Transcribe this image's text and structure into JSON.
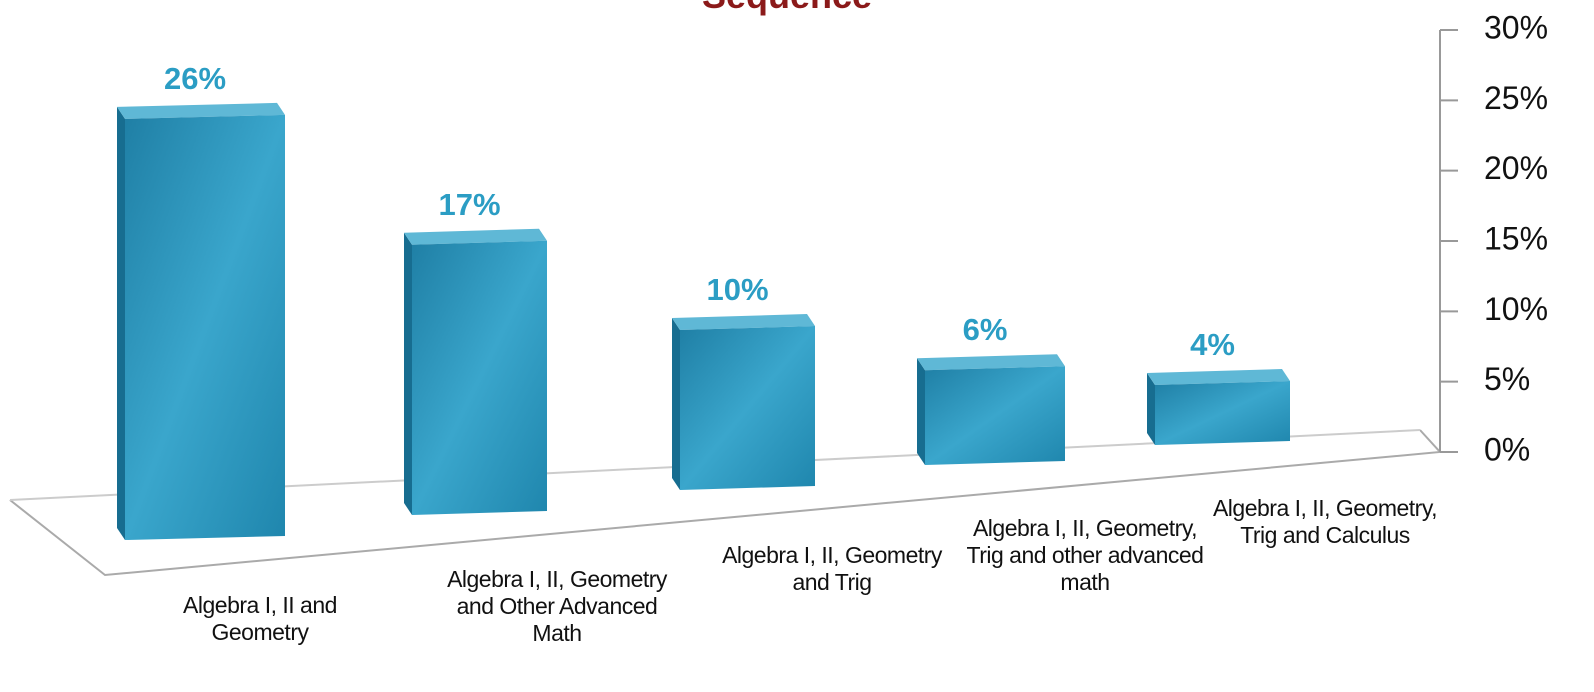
{
  "chart_data": {
    "type": "bar3d",
    "title": "Sequence",
    "categories": [
      "Algebra I, II and Geometry",
      "Algebra I, II, Geometry and Other Advanced Math",
      "Algebra I, II, Geometry and Trig",
      "Algebra I, II, Geometry, Trig and other advanced math",
      "Algebra I, II, Geometry, Trig and Calculus"
    ],
    "values": [
      26,
      17,
      10,
      6,
      4
    ],
    "value_labels": [
      "26%",
      "17%",
      "10%",
      "6%",
      "4%"
    ],
    "color": "#2a8fb5",
    "ylim": [
      0,
      30
    ],
    "yticks": [
      {
        "value": 0,
        "label": "0%"
      },
      {
        "value": 5,
        "label": "5%"
      },
      {
        "value": 10,
        "label": "10%"
      },
      {
        "value": 15,
        "label": "15%"
      },
      {
        "value": 20,
        "label": "20%"
      },
      {
        "value": 25,
        "label": "25%"
      },
      {
        "value": 30,
        "label": "30%"
      }
    ]
  }
}
